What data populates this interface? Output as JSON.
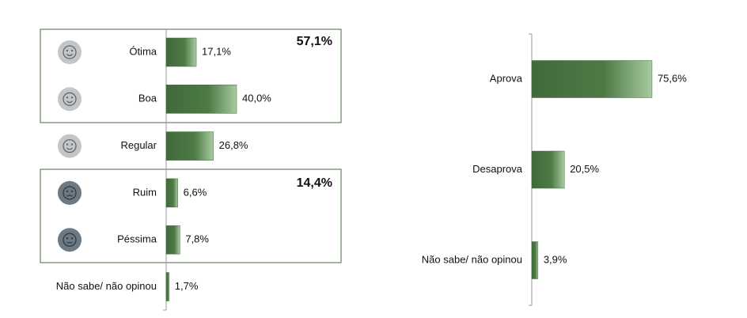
{
  "chart_data": [
    {
      "type": "bar",
      "orientation": "horizontal",
      "categories": [
        "Ótima",
        "Boa",
        "Regular",
        "Ruim",
        "Péssima",
        "Não sabe/ não opinou"
      ],
      "values": [
        17.1,
        40.0,
        26.8,
        6.6,
        7.8,
        1.7
      ],
      "value_labels": [
        "17,1%",
        "40,0%",
        "26,8%",
        "6,6%",
        "7,8%",
        "1,7%"
      ],
      "color": "#3f6b3a",
      "annotations": [
        "57,1%",
        "14,4%"
      ]
    },
    {
      "type": "bar",
      "orientation": "horizontal",
      "categories": [
        "Aprova",
        "Desaprova",
        "Não sabe/ não opinou"
      ],
      "values": [
        75.6,
        20.5,
        3.9
      ],
      "value_labels": [
        "75,6%",
        "20,5%",
        "3,9%"
      ],
      "color": "#3f6b3a"
    }
  ]
}
